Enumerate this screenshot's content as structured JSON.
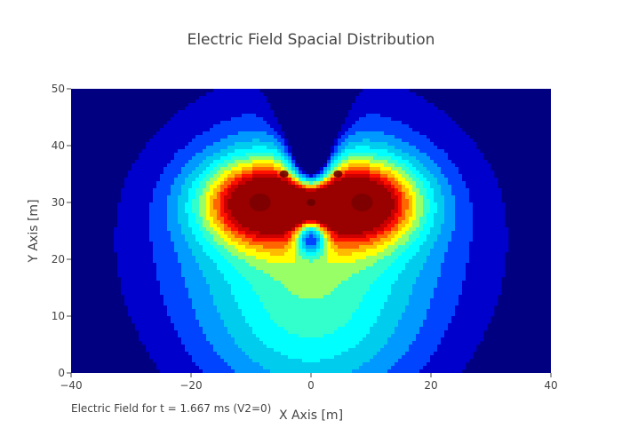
{
  "chart_data": {
    "type": "heatmap",
    "title": "Electric Field Spacial Distribution",
    "xlabel": "X Axis [m]",
    "ylabel": "Y Axis [m]",
    "xlim": [
      -40,
      40
    ],
    "ylim": [
      0,
      50
    ],
    "x_ticks": [
      "−40",
      "−20",
      "0",
      "20",
      "40"
    ],
    "y_ticks": [
      "0",
      "10",
      "20",
      "30",
      "40",
      "50"
    ],
    "annotation": "Electric Field for t = 1.667 ms (V2=0)",
    "colorscale": [
      "#000080",
      "#0000cd",
      "#0044ff",
      "#0099ff",
      "#00ccee",
      "#00ffff",
      "#33ffcc",
      "#99ff66",
      "#ffff00",
      "#ffbb00",
      "#ff6600",
      "#ff1100",
      "#cc0000",
      "#990000"
    ],
    "sources": [
      {
        "x": -8.5,
        "y": 30
      },
      {
        "x": 8.5,
        "y": 30
      },
      {
        "x": 0,
        "y": 30
      },
      {
        "x": -4.5,
        "y": 35
      },
      {
        "x": 4.5,
        "y": 35
      }
    ],
    "grid": false
  }
}
